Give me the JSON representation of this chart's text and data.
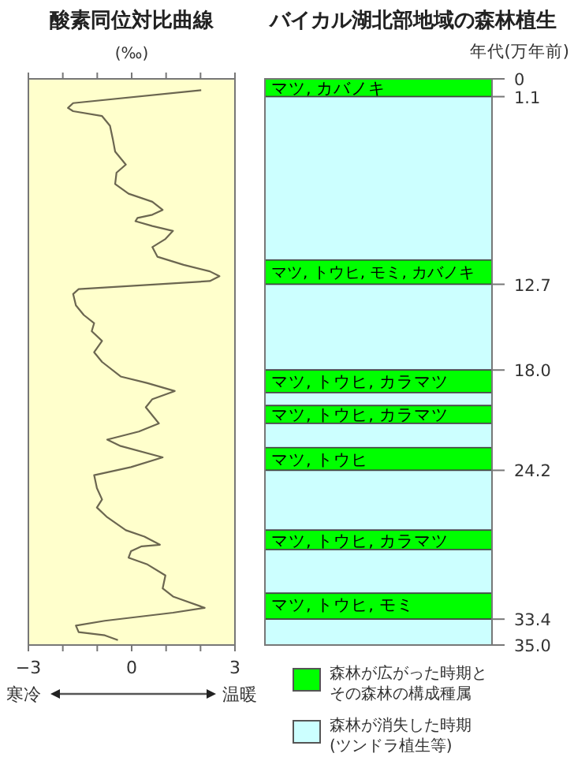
{
  "chart_data": [
    {
      "type": "line",
      "title": "酸素同位対比曲線",
      "x2label": "(‰)",
      "annotations": [
        "寒冷",
        "温暖"
      ],
      "xlim": [
        -3,
        3
      ],
      "xticks": [
        -3,
        {
          "value": -2,
          "label": null
        },
        {
          "value": -1,
          "label": null
        },
        0,
        {
          "value": 1,
          "label": null
        },
        {
          "value": 2,
          "label": null
        },
        3
      ],
      "ylim": [
        35,
        0
      ],
      "tick_labels": "x",
      "series": [
        {
          "color": "#6b6650",
          "x": [
            2.02,
            -1.7,
            -1.85,
            -1.7,
            -0.86,
            -0.63,
            -0.55,
            -0.48,
            -0.17,
            -0.44,
            -0.48,
            -0.09,
            0.6,
            0.9,
            0.6,
            0.17,
            0.11,
            0.6,
            1.2,
            0.98,
            0.6,
            0.75,
            1.51,
            2.27,
            2.55,
            2.27,
            -1.54,
            -1.7,
            -1.62,
            -1.39,
            -1.09,
            -1.16,
            -0.86,
            -1.09,
            -0.86,
            -0.32,
            0.44,
            1.25,
            0.6,
            0.41,
            0.79,
            0.21,
            -0.71,
            -0.32,
            0.9,
            -0.02,
            -1.09,
            -1.01,
            -0.86,
            -1.01,
            -0.71,
            -0.17,
            0.37,
            0.82,
            0.29,
            -0.02,
            -0.09,
            0.44,
            0.98,
            0.9,
            1.2,
            2.12,
            1.2,
            -0.78,
            -1.62,
            -1.54,
            -0.78,
            -0.4
          ],
          "values": [
            0.7,
            1.5,
            1.8,
            2.0,
            2.3,
            2.9,
            3.7,
            4.5,
            5.3,
            5.8,
            6.5,
            7.1,
            7.6,
            8.1,
            8.4,
            8.6,
            8.8,
            9.1,
            9.4,
            9.9,
            10.4,
            11.0,
            11.5,
            11.9,
            12.2,
            12.5,
            13.0,
            13.3,
            14.0,
            14.6,
            15.1,
            15.6,
            16.2,
            16.9,
            17.5,
            18.4,
            18.8,
            19.3,
            19.8,
            20.3,
            21.3,
            21.8,
            22.3,
            22.7,
            23.4,
            24.0,
            24.5,
            25.3,
            26.0,
            26.5,
            27.1,
            27.9,
            28.3,
            28.8,
            28.9,
            29.2,
            29.6,
            30.0,
            30.7,
            31.5,
            32.0,
            32.7,
            33.0,
            33.5,
            33.8,
            34.2,
            34.4,
            34.7
          ]
        }
      ]
    },
    {
      "type": "bar",
      "stacked": true,
      "title": "バイカル湖北部地域の森林植生",
      "ylabel": "年代(万年前)",
      "categories": [
        null
      ],
      "ylim": [
        35,
        0
      ],
      "yticks": [
        0,
        1.1,
        12.7,
        {
          "value": 18,
          "label": "18.0"
        },
        24.2,
        33.4,
        {
          "value": 35,
          "label": "35.0"
        }
      ],
      "tick_labels": "y",
      "annotations": [
        "森林が広がった時期とその森林の構成種属",
        "森林が消失した時期(ツンドラ植生等)"
      ],
      "series": [
        {
          "name": "マツ, カバノキ",
          "color": "#00ff00",
          "values": [
            1.1
          ]
        },
        {
          "color": "#ccffff",
          "values": [
            10.1
          ]
        },
        {
          "name": "マツ, トウヒ, モミ, カバノキ",
          "color": "#00ff00",
          "values": [
            1.5
          ]
        },
        {
          "color": "#ccffff",
          "values": [
            5.3
          ]
        },
        {
          "name": "マツ, トウヒ, カラマツ",
          "color": "#00ff00",
          "values": [
            1.4
          ]
        },
        {
          "color": "#ccffff",
          "values": [
            0.8
          ]
        },
        {
          "name": "マツ, トウヒ, カラマツ",
          "color": "#00ff00",
          "values": [
            1.1
          ]
        },
        {
          "color": "#ccffff",
          "values": [
            1.5
          ]
        },
        {
          "name": "マツ, トウヒ",
          "color": "#00ff00",
          "values": [
            1.4
          ]
        },
        {
          "color": "#ccffff",
          "values": [
            3.7
          ]
        },
        {
          "name": "マツ, トウヒ, カラマツ",
          "color": "#00ff00",
          "values": [
            1.2
          ]
        },
        {
          "color": "#ccffff",
          "values": [
            2.7
          ]
        },
        {
          "name": "マツ, トウヒ, モミ",
          "color": "#00ff00",
          "values": [
            1.6
          ]
        },
        {
          "color": "#ccffff",
          "values": [
            1.6
          ]
        }
      ]
    }
  ]
}
